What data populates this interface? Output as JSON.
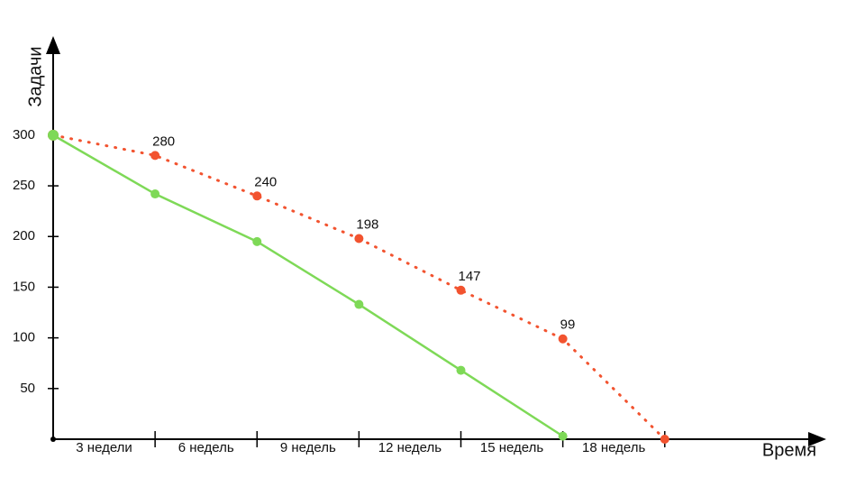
{
  "chart_data": {
    "type": "line",
    "y_label": "Задачи",
    "x_label": "Время",
    "x": [
      0,
      3,
      6,
      9,
      12,
      15,
      18
    ],
    "series": [
      {
        "color": "#f2532f",
        "line_style": "dotted",
        "values": [
          300,
          280,
          240,
          198,
          147,
          99,
          0
        ]
      },
      {
        "color": "#7ed957",
        "line_style": "solid",
        "values": [
          300,
          242,
          195,
          133,
          68,
          3,
          null
        ]
      }
    ],
    "xlim": [
      0,
      22.7
    ],
    "ylim": [
      0,
      396
    ],
    "xticks": [
      {
        "value": 3,
        "label": "3 недели"
      },
      {
        "value": 6,
        "label": "6 недель"
      },
      {
        "value": 9,
        "label": "9 недель"
      },
      {
        "value": 12,
        "label": "12 недель"
      },
      {
        "value": 15,
        "label": "15 недель"
      },
      {
        "value": 18,
        "label": "18 недель"
      }
    ],
    "yticks": [
      50,
      100,
      150,
      200,
      250,
      300
    ]
  }
}
